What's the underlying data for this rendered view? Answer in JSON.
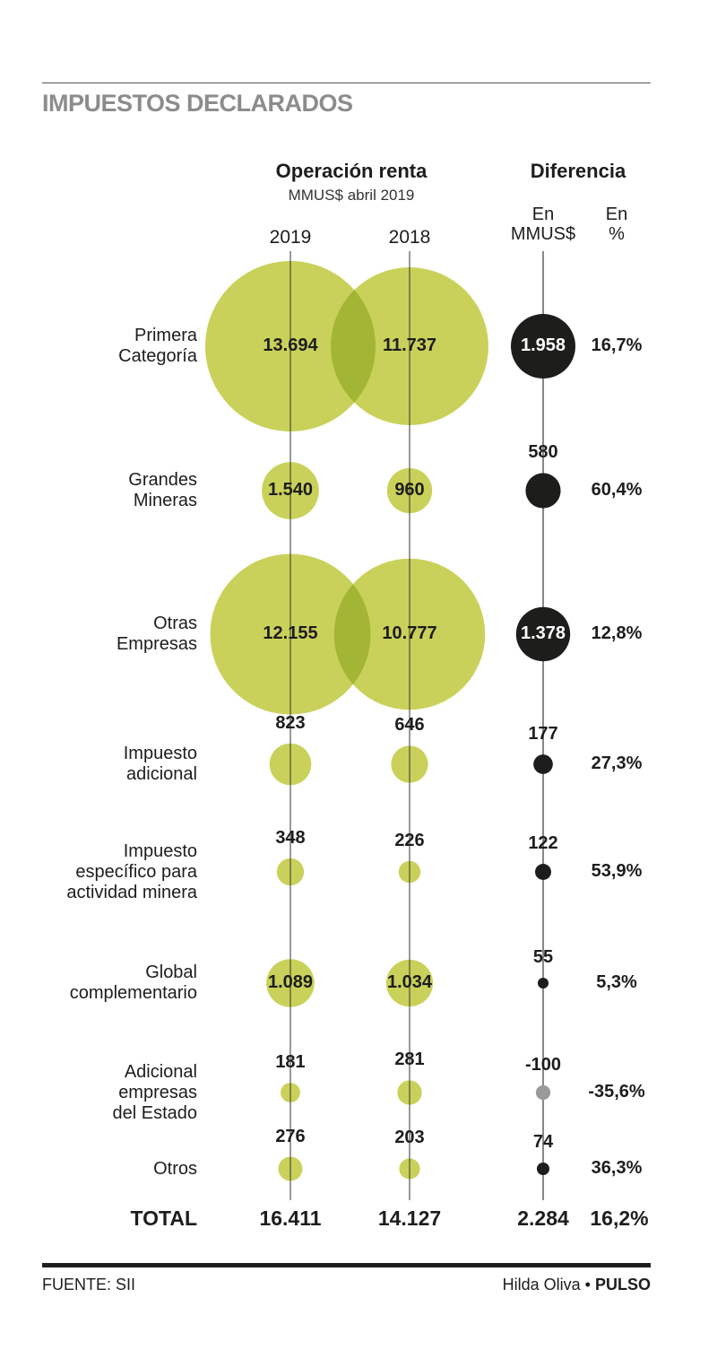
{
  "title": "IMPUESTOS DECLARADOS",
  "headers": {
    "operacion": "Operación renta",
    "operacion_sub": "MMUS$ abril 2019",
    "year_2019": "2019",
    "year_2018": "2018",
    "diferencia": "Diferencia",
    "dif_mmus": "En\nMMUS$",
    "dif_pct": "En\n%"
  },
  "rows": [
    {
      "label": "Primera\nCategoría",
      "v2019": "13.694",
      "v2018": "11.737",
      "diff": "1.958",
      "pct": "16,7%"
    },
    {
      "label": "Grandes\nMineras",
      "v2019": "1.540",
      "v2018": "960",
      "diff": "580",
      "pct": "60,4%"
    },
    {
      "label": "Otras\nEmpresas",
      "v2019": "12.155",
      "v2018": "10.777",
      "diff": "1.378",
      "pct": "12,8%"
    },
    {
      "label": "Impuesto\nadicional",
      "v2019": "823",
      "v2018": "646",
      "diff": "177",
      "pct": "27,3%"
    },
    {
      "label": "Impuesto\nespecífico para\nactividad minera",
      "v2019": "348",
      "v2018": "226",
      "diff": "122",
      "pct": "53,9%"
    },
    {
      "label": "Global\ncomplementario",
      "v2019": "1.089",
      "v2018": "1.034",
      "diff": "55",
      "pct": "5,3%"
    },
    {
      "label": "Adicional\nempresas\ndel Estado",
      "v2019": "181",
      "v2018": "281",
      "diff": "-100",
      "pct": "-35,6%"
    },
    {
      "label": "Otros",
      "v2019": "276",
      "v2018": "203",
      "diff": "74",
      "pct": "36,3%"
    }
  ],
  "total": {
    "label": "TOTAL",
    "v2019": "16.411",
    "v2018": "14.127",
    "diff": "2.284",
    "pct": "16,2%"
  },
  "footer": {
    "source": "FUENTE: SII",
    "author": "Hilda Oliva",
    "separator": " • ",
    "outlet": "PULSO"
  },
  "colors": {
    "bubble": "#c9d15a",
    "overlap": "#a3b535",
    "positive": "#1d1d1b",
    "negative": "#9a9a9a"
  },
  "chart_data": {
    "type": "scatter",
    "title": "IMPUESTOS DECLARADOS",
    "unit": "MMUS$ abril 2019",
    "categories": [
      "Primera Categoría",
      "Grandes Mineras",
      "Otras Empresas",
      "Impuesto adicional",
      "Impuesto específico para actividad minera",
      "Global complementario",
      "Adicional empresas del Estado",
      "Otros"
    ],
    "series": [
      {
        "name": "2019",
        "values": [
          13694,
          1540,
          12155,
          823,
          348,
          1089,
          181,
          276
        ]
      },
      {
        "name": "2018",
        "values": [
          11737,
          960,
          10777,
          646,
          226,
          1034,
          281,
          203
        ]
      },
      {
        "name": "Diferencia En MMUS$",
        "values": [
          1958,
          580,
          1378,
          177,
          122,
          55,
          -100,
          74
        ]
      },
      {
        "name": "Diferencia En %",
        "values": [
          16.7,
          60.4,
          12.8,
          27.3,
          53.9,
          5.3,
          -35.6,
          36.3
        ]
      }
    ],
    "totals": {
      "2019": 16411,
      "2018": 14127,
      "diff": 2284,
      "pct": 16.2
    }
  }
}
